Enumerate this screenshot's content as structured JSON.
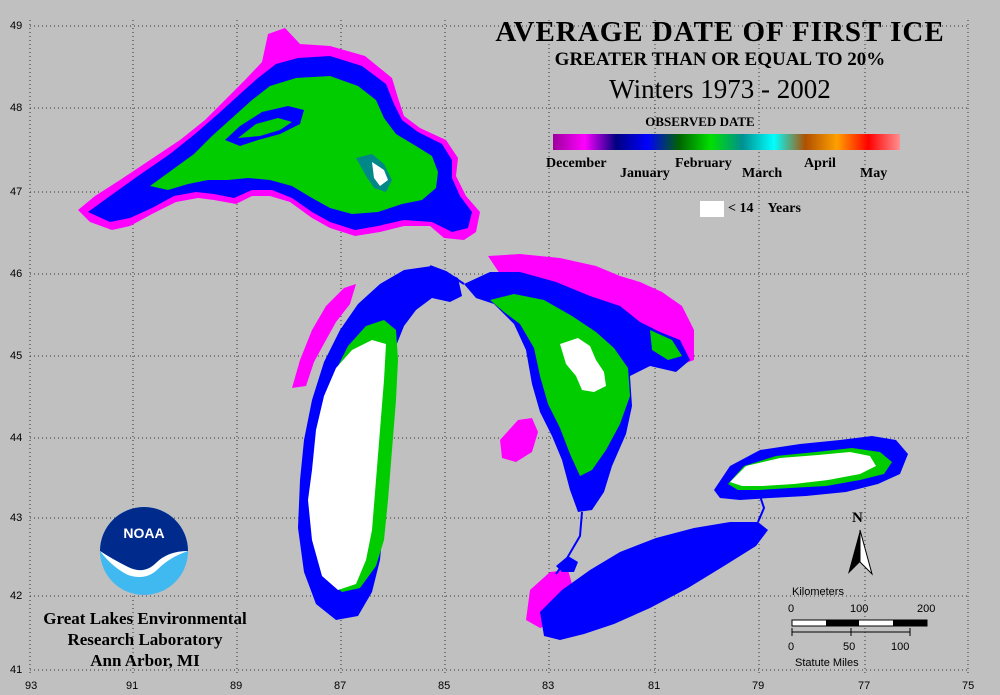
{
  "title": {
    "line1": "AVERAGE DATE OF FIRST ICE",
    "line2": "GREATER THAN OR EQUAL TO 20%",
    "line3": "Winters 1973 - 2002"
  },
  "legend": {
    "label": "OBSERVED DATE",
    "months_upper": [
      "December",
      "February",
      "April"
    ],
    "months_lower": [
      "January",
      "March",
      "May"
    ],
    "gradient_colors": [
      "#9c009c",
      "#ff00ff",
      "#000080",
      "#0000ff",
      "#006400",
      "#00e000",
      "#009090",
      "#00ffff",
      "#b05000",
      "#ffa000",
      "#ff0000",
      "#ff9090"
    ],
    "white_label": "< 14",
    "white_units": "Years"
  },
  "organization": {
    "line1": "Great Lakes Environmental",
    "line2": "Research Laboratory",
    "line3": "Ann Arbor, MI",
    "logo_text": "NOAA"
  },
  "axes": {
    "latitudes": [
      "49",
      "48",
      "47",
      "46",
      "45",
      "44",
      "43",
      "42",
      "41"
    ],
    "longitudes": [
      "93",
      "91",
      "89",
      "87",
      "85",
      "83",
      "81",
      "79",
      "77",
      "75"
    ]
  },
  "scale_bar": {
    "km_label": "Kilometers",
    "km_ticks": [
      "0",
      "100",
      "200"
    ],
    "mi_label": "Statute Miles",
    "mi_ticks": [
      "0",
      "50",
      "100"
    ]
  },
  "north_arrow": {
    "label": "N"
  },
  "colors": {
    "background": "#c0c0c0",
    "december": "#ff00ff",
    "january": "#0000ff",
    "february": "#00cc00",
    "under14years": "#ffffff"
  }
}
